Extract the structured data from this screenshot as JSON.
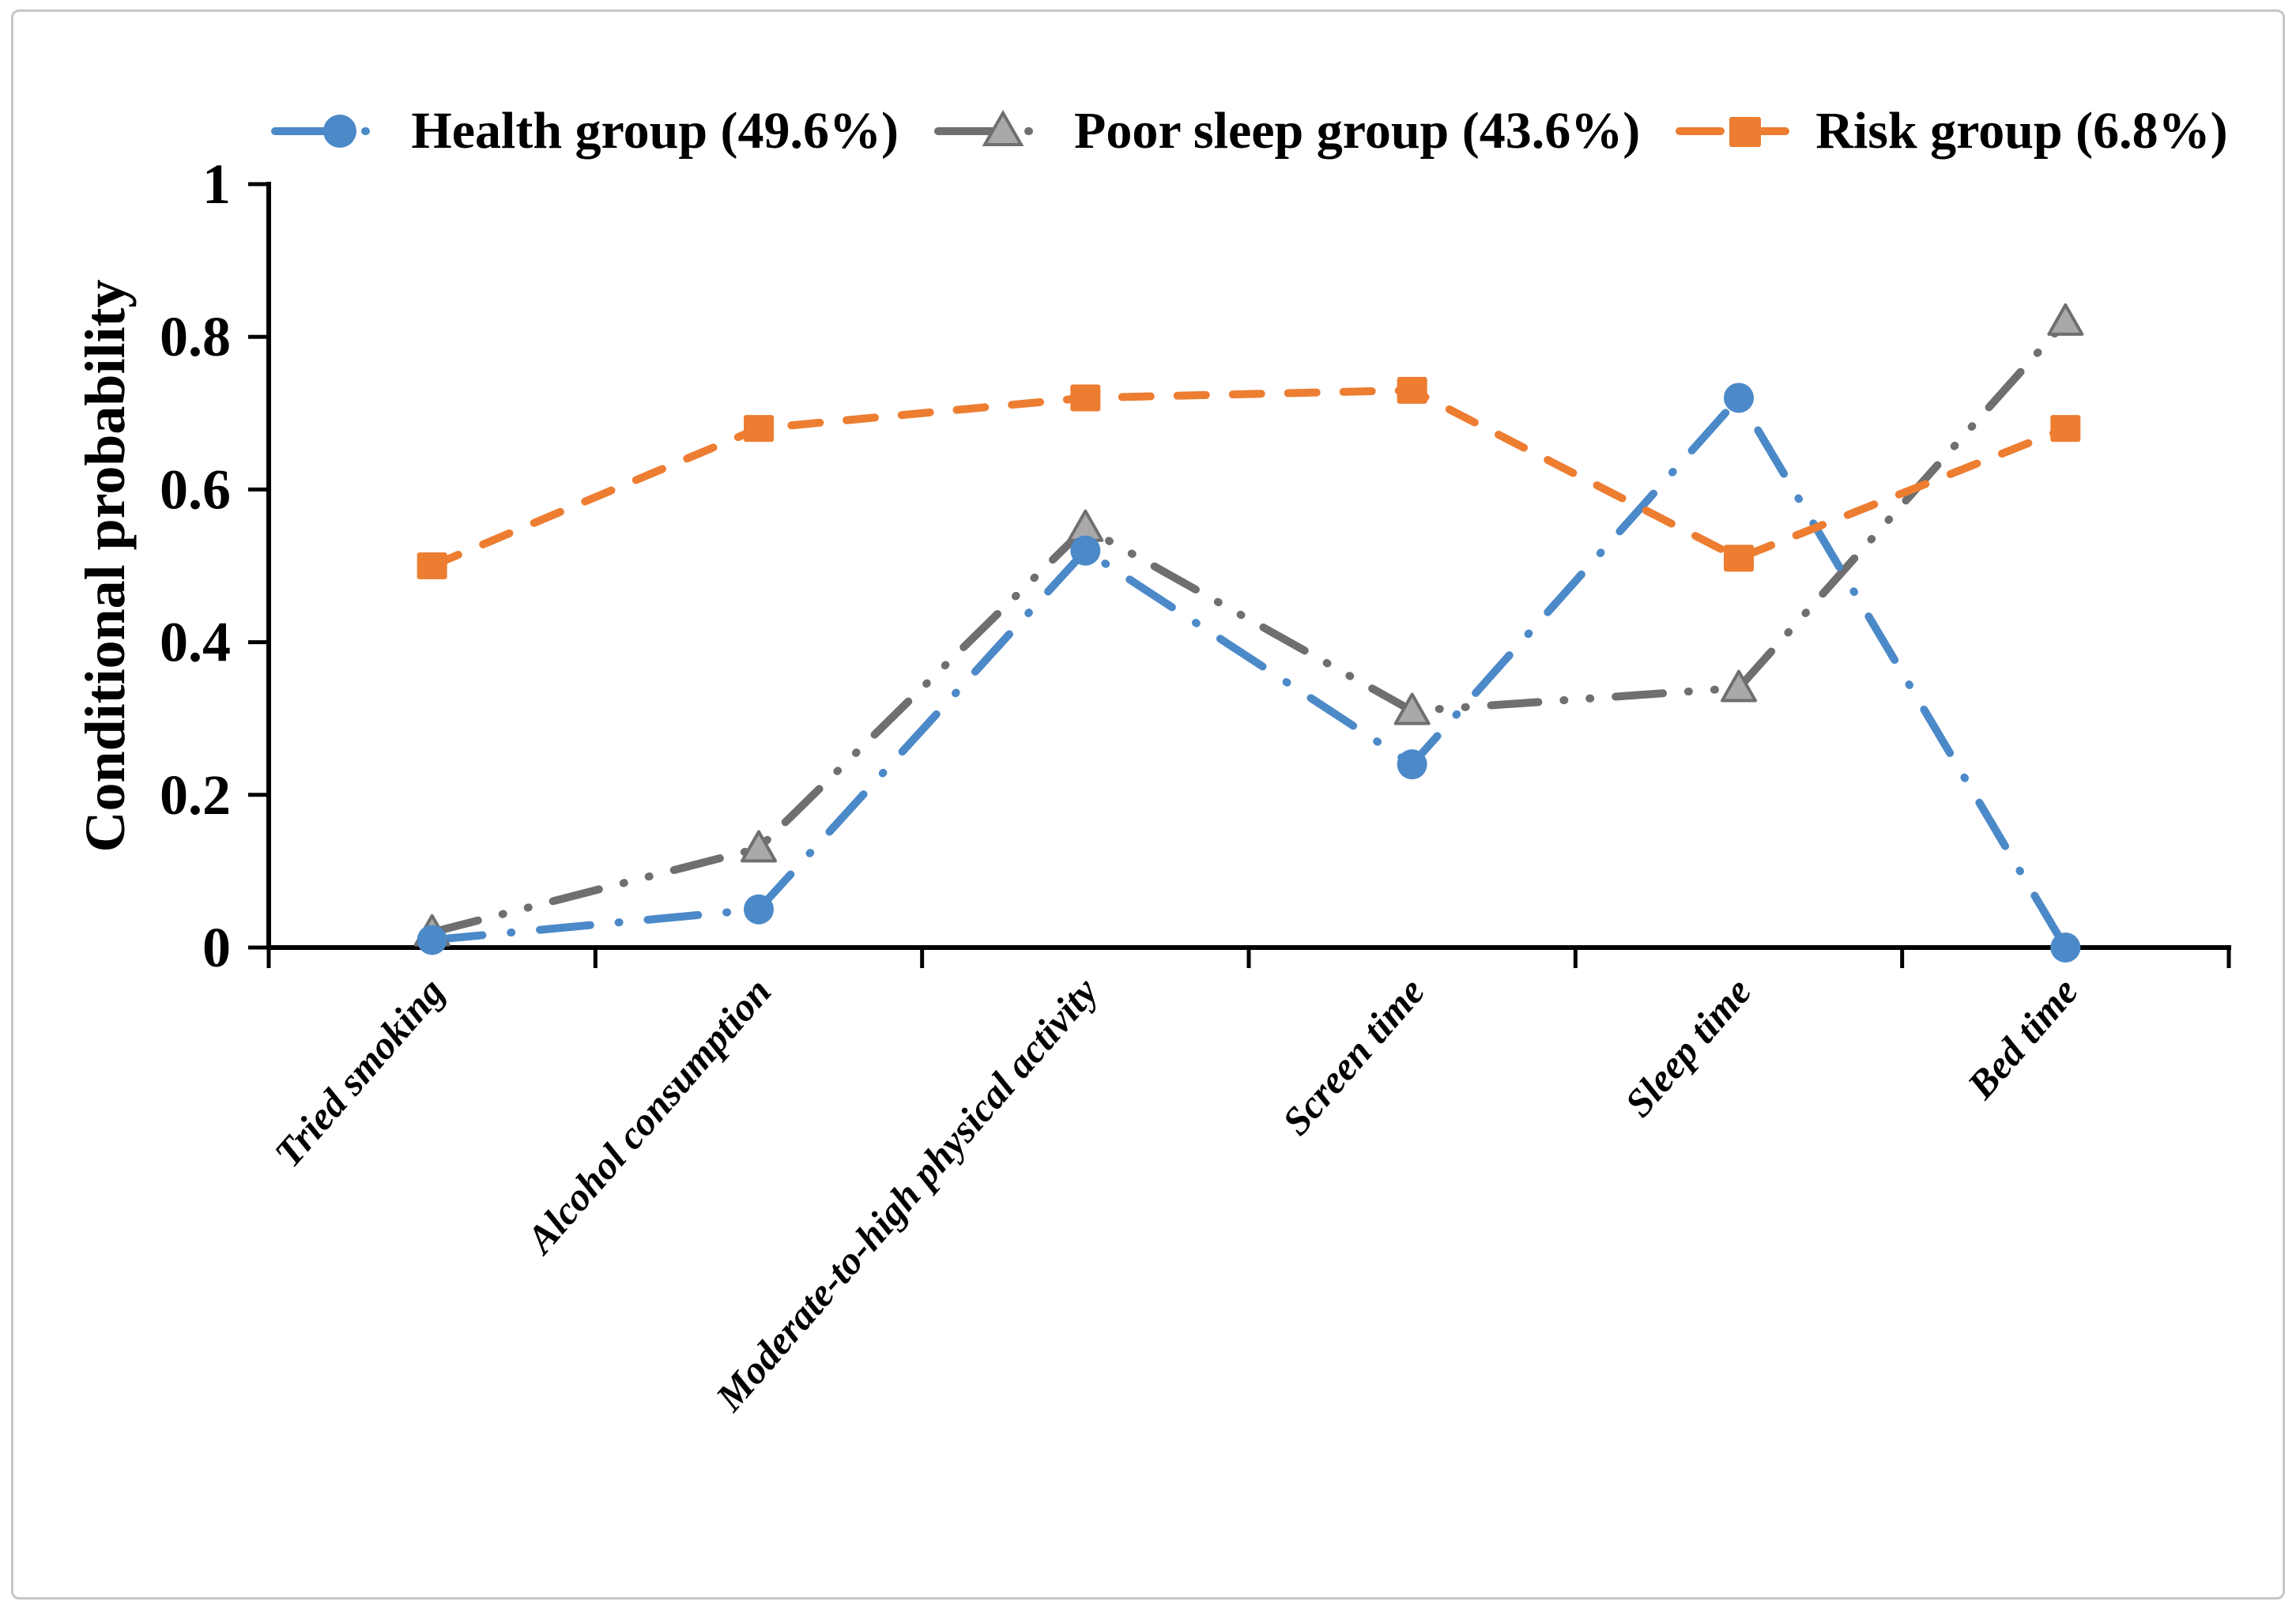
{
  "figure": {
    "background": "#ffffff",
    "border_color": "#c3c7cb",
    "axis_color": "#000000",
    "text_color": "#000000"
  },
  "chart_data": {
    "type": "line",
    "title": "",
    "xlabel": "",
    "ylabel": "Conditional probability",
    "ylim": [
      0,
      1
    ],
    "yticks": [
      0,
      0.2,
      0.4,
      0.6,
      0.8,
      1
    ],
    "ytick_labels": [
      "0",
      "0.2",
      "0.4",
      "0.6",
      "0.8",
      "1"
    ],
    "grid": false,
    "legend_position": "top",
    "categories": [
      "Tried smoking",
      "Alcohol consumption",
      "Moderate-to-high physical activity",
      "Screen time",
      "Sleep time",
      "Bed time"
    ],
    "series": [
      {
        "name": "Health group (49.6%)",
        "color": "#4C89C8",
        "marker": "circle",
        "marker_fill": "#4C89C8",
        "line_style": "dash-dot",
        "values": [
          0.01,
          0.05,
          0.52,
          0.24,
          0.72,
          0.0
        ]
      },
      {
        "name": "Poor sleep group (43.6%)",
        "color": "#6F6F6F",
        "marker": "triangle",
        "marker_fill": "#A9A9A9",
        "marker_stroke": "#6F6F6F",
        "line_style": "dash-dot-dot",
        "values": [
          0.02,
          0.13,
          0.55,
          0.31,
          0.34,
          0.82
        ]
      },
      {
        "name": "Risk group (6.8%)",
        "color": "#ED7D31",
        "marker": "square",
        "marker_fill": "#ED7D31",
        "line_style": "dash",
        "values": [
          0.5,
          0.68,
          0.72,
          0.73,
          0.51,
          0.68
        ]
      }
    ]
  }
}
